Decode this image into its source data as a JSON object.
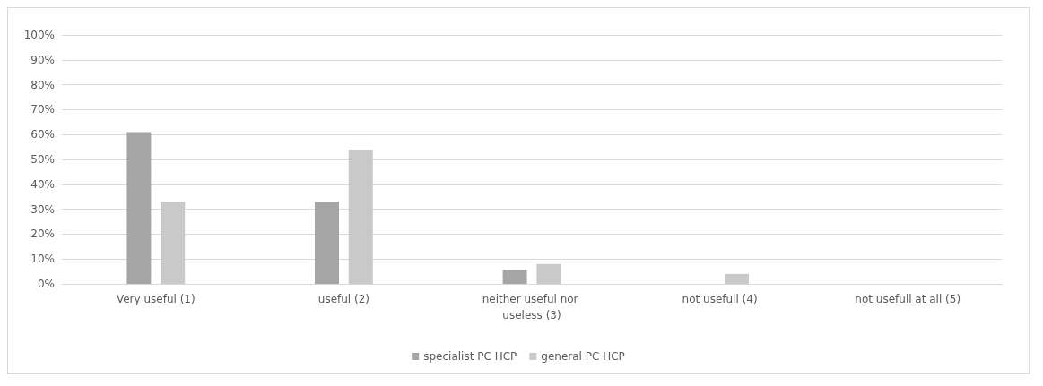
{
  "chart_data": {
    "type": "bar",
    "categories": [
      "Very useful (1)",
      "useful (2)",
      "neither useful nor useless (3)",
      "not usefull (4)",
      "not usefull at all (5)"
    ],
    "series": [
      {
        "name": "specialist PC HCP",
        "color": "#a5a5a5",
        "values": [
          61,
          33,
          5.6,
          0,
          0
        ]
      },
      {
        "name": "general PC HCP",
        "color": "#c9c9c9",
        "values": [
          33,
          54,
          8,
          4,
          0
        ]
      }
    ],
    "ylim": [
      0,
      100
    ],
    "yticks": [
      {
        "value": 0,
        "label": "0%"
      },
      {
        "value": 10,
        "label": "10%"
      },
      {
        "value": 20,
        "label": "20%"
      },
      {
        "value": 30,
        "label": "30%"
      },
      {
        "value": 40,
        "label": "40%"
      },
      {
        "value": 50,
        "label": "50%"
      },
      {
        "value": 60,
        "label": "60%"
      },
      {
        "value": 70,
        "label": "70%"
      },
      {
        "value": 80,
        "label": "80%"
      },
      {
        "value": 90,
        "label": "90%"
      },
      {
        "value": 100,
        "label": "100%"
      }
    ],
    "grid": "y",
    "legend": "bottom"
  }
}
